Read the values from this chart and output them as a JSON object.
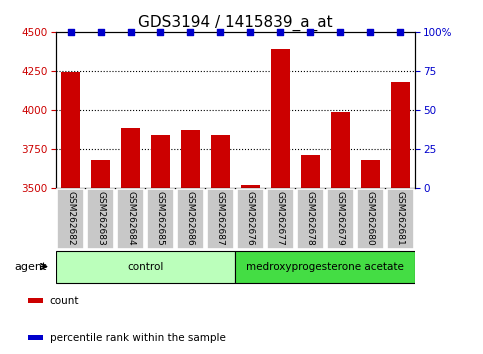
{
  "title": "GDS3194 / 1415839_a_at",
  "samples": [
    "GSM262682",
    "GSM262683",
    "GSM262684",
    "GSM262685",
    "GSM262686",
    "GSM262687",
    "GSM262676",
    "GSM262677",
    "GSM262678",
    "GSM262679",
    "GSM262680",
    "GSM262681"
  ],
  "counts": [
    4240,
    3680,
    3880,
    3840,
    3870,
    3840,
    3515,
    4390,
    3710,
    3985,
    3680,
    4180
  ],
  "percentile_ranks": [
    100,
    100,
    100,
    100,
    100,
    100,
    100,
    100,
    100,
    100,
    100,
    100
  ],
  "ylim_left": [
    3500,
    4500
  ],
  "ylim_right": [
    0,
    100
  ],
  "yticks_left": [
    3500,
    3750,
    4000,
    4250,
    4500
  ],
  "yticks_right": [
    0,
    25,
    50,
    75,
    100
  ],
  "ytick_right_labels": [
    "0",
    "25",
    "50",
    "75",
    "100%"
  ],
  "grid_lines": [
    3750,
    4000,
    4250
  ],
  "bar_color": "#cc0000",
  "scatter_color": "#0000cc",
  "groups": [
    {
      "label": "control",
      "indices": [
        0,
        1,
        2,
        3,
        4,
        5
      ],
      "color": "#bbffbb"
    },
    {
      "label": "medroxyprogesterone acetate",
      "indices": [
        6,
        7,
        8,
        9,
        10,
        11
      ],
      "color": "#44dd44"
    }
  ],
  "agent_label": "agent",
  "legend_items": [
    {
      "label": "count",
      "color": "#cc0000"
    },
    {
      "label": "percentile rank within the sample",
      "color": "#0000cc"
    }
  ],
  "title_fontsize": 11,
  "tick_label_color_left": "#cc0000",
  "tick_label_color_right": "#0000cc",
  "background_color": "#ffffff",
  "xticklabel_bg": "#c8c8c8",
  "bar_width": 0.65
}
